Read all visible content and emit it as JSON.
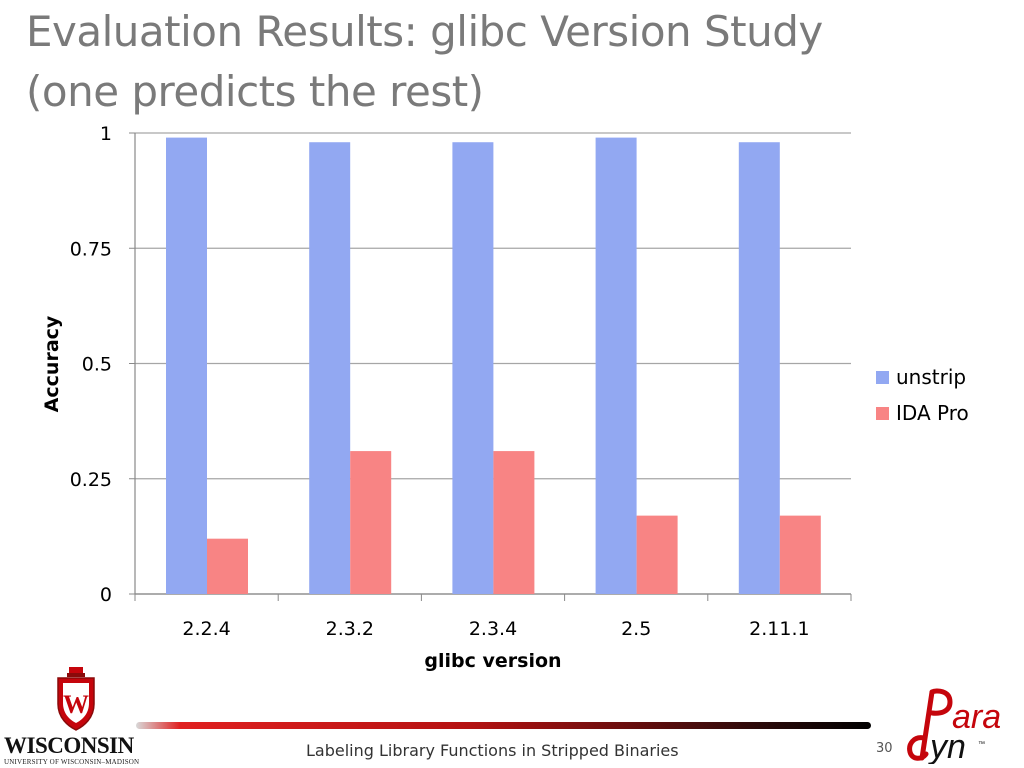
{
  "slide": {
    "title_line1": "Evaluation Results: glibc Version Study",
    "title_line2": "(one predicts the rest)",
    "footer_text": "Labeling Library Functions in Stripped Binaries",
    "page_number": "30"
  },
  "logos": {
    "university_name": "WISCONSIN",
    "university_subtitle": "UNIVERSITY OF WISCONSIN–MADISON",
    "crest_letter": "W",
    "paradyn_top": "ara",
    "paradyn_bottom": "yn",
    "paradyn_tm": "™"
  },
  "colors": {
    "unstrip": "#92a8f2",
    "ida_pro": "#f88484",
    "grid": "#a6a6a6",
    "axis": "#898989",
    "title": "#7a7a7a",
    "wisconsin_red": "#c5050c"
  },
  "chart_data": {
    "type": "bar",
    "categories": [
      "2.2.4",
      "2.3.2",
      "2.3.4",
      "2.5",
      "2.11.1"
    ],
    "series": [
      {
        "name": "unstrip",
        "values": [
          0.99,
          0.98,
          0.98,
          0.99,
          0.98
        ]
      },
      {
        "name": "IDA Pro",
        "values": [
          0.12,
          0.31,
          0.31,
          0.17,
          0.17
        ]
      }
    ],
    "xlabel": "glibc version",
    "ylabel": "Accuracy",
    "ylim": [
      0,
      1
    ],
    "yticks": [
      0,
      0.25,
      0.5,
      0.75,
      1
    ],
    "ytick_labels": [
      "0",
      "0.25",
      "0.5",
      "0.75",
      "1"
    ],
    "grid": true,
    "legend_position": "right"
  }
}
